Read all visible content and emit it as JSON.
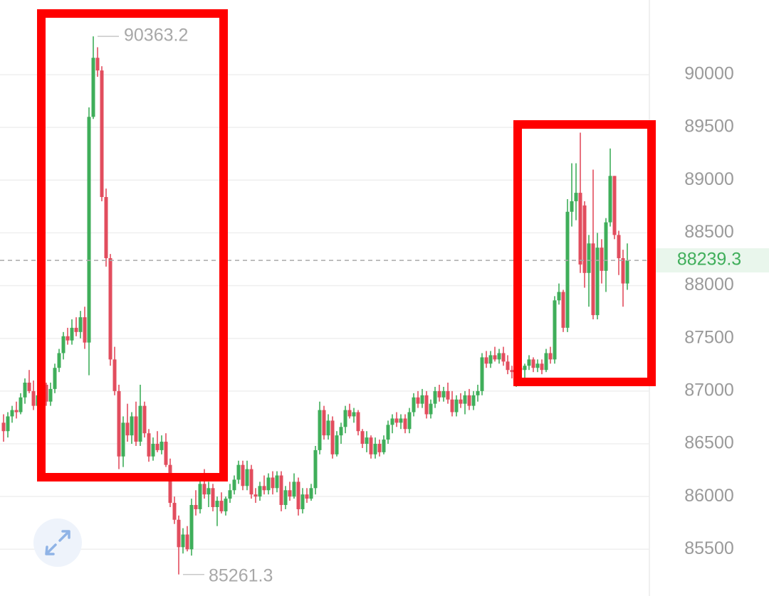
{
  "chart_data": {
    "type": "candlestick",
    "up_color": "#3fae5a",
    "down_color": "#e24d5e",
    "ylim": [
      85057,
      90708
    ],
    "yticks": [
      85500,
      86000,
      86500,
      87000,
      87500,
      88000,
      88500,
      89000,
      89500,
      90000
    ],
    "grid": true,
    "open": [
      86700,
      86620,
      86760,
      86820,
      86800,
      86940,
      87080,
      87000,
      86860,
      86960,
      87060,
      86900,
      87020,
      87220,
      87360,
      87520,
      87480,
      87600,
      87560,
      87700,
      87460,
      89600,
      90160,
      90040,
      88840,
      88260,
      87300,
      87000,
      86380,
      86700,
      86580,
      86760,
      86520,
      86860,
      86600,
      86380,
      86500,
      86440,
      86520,
      86300,
      85940,
      85780,
      85520,
      85640,
      85500,
      85920,
      85880,
      86120,
      86020,
      86080,
      85900,
      85960,
      85860,
      85980,
      86060,
      86160,
      86300,
      86100,
      86260,
      86020,
      86000,
      86100,
      86060,
      86180,
      86080,
      86200,
      85920,
      86060,
      86000,
      86140,
      85880,
      86020,
      85980,
      86080,
      86440,
      86820,
      86580,
      86720,
      86400,
      86580,
      86660,
      86820,
      86760,
      86800,
      86620,
      86500,
      86560,
      86400,
      86500,
      86420,
      86540,
      86680,
      86740,
      86700,
      86740,
      86640,
      86800,
      86940,
      86880,
      86960,
      86780,
      86880,
      87000,
      86940,
      87000,
      86920,
      86800,
      86920,
      86880,
      86960,
      86860,
      86960,
      87000,
      87320,
      87260,
      87340,
      87300,
      87360,
      87280,
      87200,
      87180,
      87220,
      87200,
      87240,
      87300,
      87220,
      87260,
      87200,
      87360,
      87300,
      87860,
      87940,
      87600,
      88700,
      88800,
      88880,
      88760,
      88120,
      88400,
      87720,
      88360,
      88140,
      88600,
      89040,
      88480,
      88260,
      88020
    ],
    "high": [
      86780,
      86800,
      86860,
      86900,
      86980,
      87120,
      87200,
      87100,
      87000,
      87120,
      87080,
      87080,
      87260,
      87400,
      87560,
      87600,
      87680,
      87700,
      87760,
      87800,
      89690,
      90363.2,
      90260,
      90080,
      88920,
      88300,
      87420,
      87060,
      86760,
      86880,
      86800,
      86900,
      87060,
      86900,
      86640,
      86560,
      86620,
      86580,
      86600,
      86360,
      86000,
      85820,
      85700,
      85720,
      85980,
      86060,
      86180,
      86260,
      86140,
      86120,
      86000,
      86040,
      86000,
      86120,
      86200,
      86340,
      86340,
      86340,
      86300,
      86080,
      86140,
      86200,
      86220,
      86240,
      86240,
      86240,
      86100,
      86140,
      86220,
      86180,
      86080,
      86080,
      86120,
      86480,
      86900,
      86860,
      86780,
      86760,
      86620,
      86700,
      86860,
      86880,
      86840,
      86820,
      86640,
      86620,
      86580,
      86560,
      86540,
      86580,
      86720,
      86780,
      86800,
      86780,
      86780,
      86840,
      86980,
      87000,
      87020,
      87000,
      86920,
      87040,
      87060,
      87040,
      87080,
      87000,
      86960,
      86980,
      87000,
      87020,
      87000,
      87060,
      87360,
      87380,
      87380,
      87420,
      87400,
      87420,
      87340,
      87240,
      87260,
      87300,
      87260,
      87340,
      87320,
      87300,
      87300,
      87400,
      87420,
      87900,
      88020,
      87960,
      88820,
      89160,
      89160,
      89450,
      88800,
      88480,
      89100,
      88500,
      88440,
      88640,
      89300,
      89040,
      88520,
      88340,
      88400
    ],
    "low": [
      86520,
      86560,
      86700,
      86740,
      86780,
      86880,
      86980,
      86820,
      86740,
      86900,
      86860,
      86860,
      86980,
      87180,
      87300,
      87440,
      87440,
      87520,
      87500,
      87400,
      87150,
      89580,
      89980,
      88800,
      88180,
      87240,
      86960,
      86260,
      86280,
      86520,
      86500,
      86480,
      86480,
      86560,
      86330,
      86340,
      86420,
      86400,
      86280,
      85900,
      85740,
      85261.3,
      85460,
      85480,
      85440,
      85820,
      85840,
      85980,
      85900,
      85860,
      85720,
      85840,
      85820,
      85940,
      86020,
      86120,
      86060,
      86060,
      85980,
      85940,
      85960,
      86020,
      86020,
      86020,
      86040,
      85860,
      85880,
      85960,
      85980,
      85820,
      85840,
      85940,
      85960,
      86020,
      86400,
      86540,
      86540,
      86360,
      86380,
      86500,
      86600,
      86740,
      86700,
      86580,
      86460,
      86420,
      86360,
      86360,
      86380,
      86400,
      86500,
      86600,
      86660,
      86640,
      86600,
      86600,
      86760,
      86840,
      86840,
      86740,
      86740,
      86840,
      86900,
      86900,
      86880,
      86760,
      86760,
      86840,
      86780,
      86820,
      86820,
      86900,
      86960,
      87220,
      87220,
      87280,
      87260,
      87240,
      87160,
      87120,
      87040,
      87160,
      87080,
      87200,
      87180,
      87180,
      87160,
      87180,
      87260,
      87260,
      87820,
      87560,
      87560,
      88560,
      88620,
      88120,
      87980,
      87800,
      87680,
      87680,
      88020,
      87940,
      88560,
      88440,
      88100,
      87800,
      87960
    ],
    "close": [
      86620,
      86760,
      86820,
      86800,
      86940,
      87080,
      87000,
      86860,
      86960,
      87060,
      86900,
      87020,
      87220,
      87360,
      87520,
      87480,
      87600,
      87560,
      87700,
      87460,
      89600,
      90160,
      90040,
      88840,
      88260,
      87300,
      87000,
      86380,
      86700,
      86580,
      86760,
      86520,
      86860,
      86600,
      86380,
      86500,
      86440,
      86520,
      86300,
      85940,
      85780,
      85520,
      85640,
      85500,
      85920,
      85880,
      86120,
      86020,
      86080,
      85900,
      85960,
      85860,
      85980,
      86060,
      86160,
      86300,
      86100,
      86260,
      86020,
      86000,
      86100,
      86060,
      86180,
      86080,
      86200,
      85920,
      86060,
      86000,
      86140,
      85880,
      86020,
      85980,
      86080,
      86440,
      86820,
      86580,
      86720,
      86400,
      86580,
      86660,
      86820,
      86760,
      86800,
      86620,
      86500,
      86560,
      86400,
      86500,
      86420,
      86540,
      86680,
      86740,
      86700,
      86740,
      86640,
      86800,
      86940,
      86880,
      86960,
      86780,
      86880,
      87000,
      86940,
      87000,
      86920,
      86800,
      86920,
      86880,
      86960,
      86860,
      86960,
      87000,
      87320,
      87260,
      87340,
      87300,
      87360,
      87280,
      87200,
      87180,
      87220,
      87200,
      87240,
      87300,
      87220,
      87260,
      87200,
      87360,
      87300,
      87860,
      87940,
      87600,
      88700,
      88800,
      88880,
      88200,
      88120,
      88400,
      87720,
      88360,
      88140,
      88600,
      89040,
      88480,
      88260,
      88020,
      88239.3
    ]
  }
}
